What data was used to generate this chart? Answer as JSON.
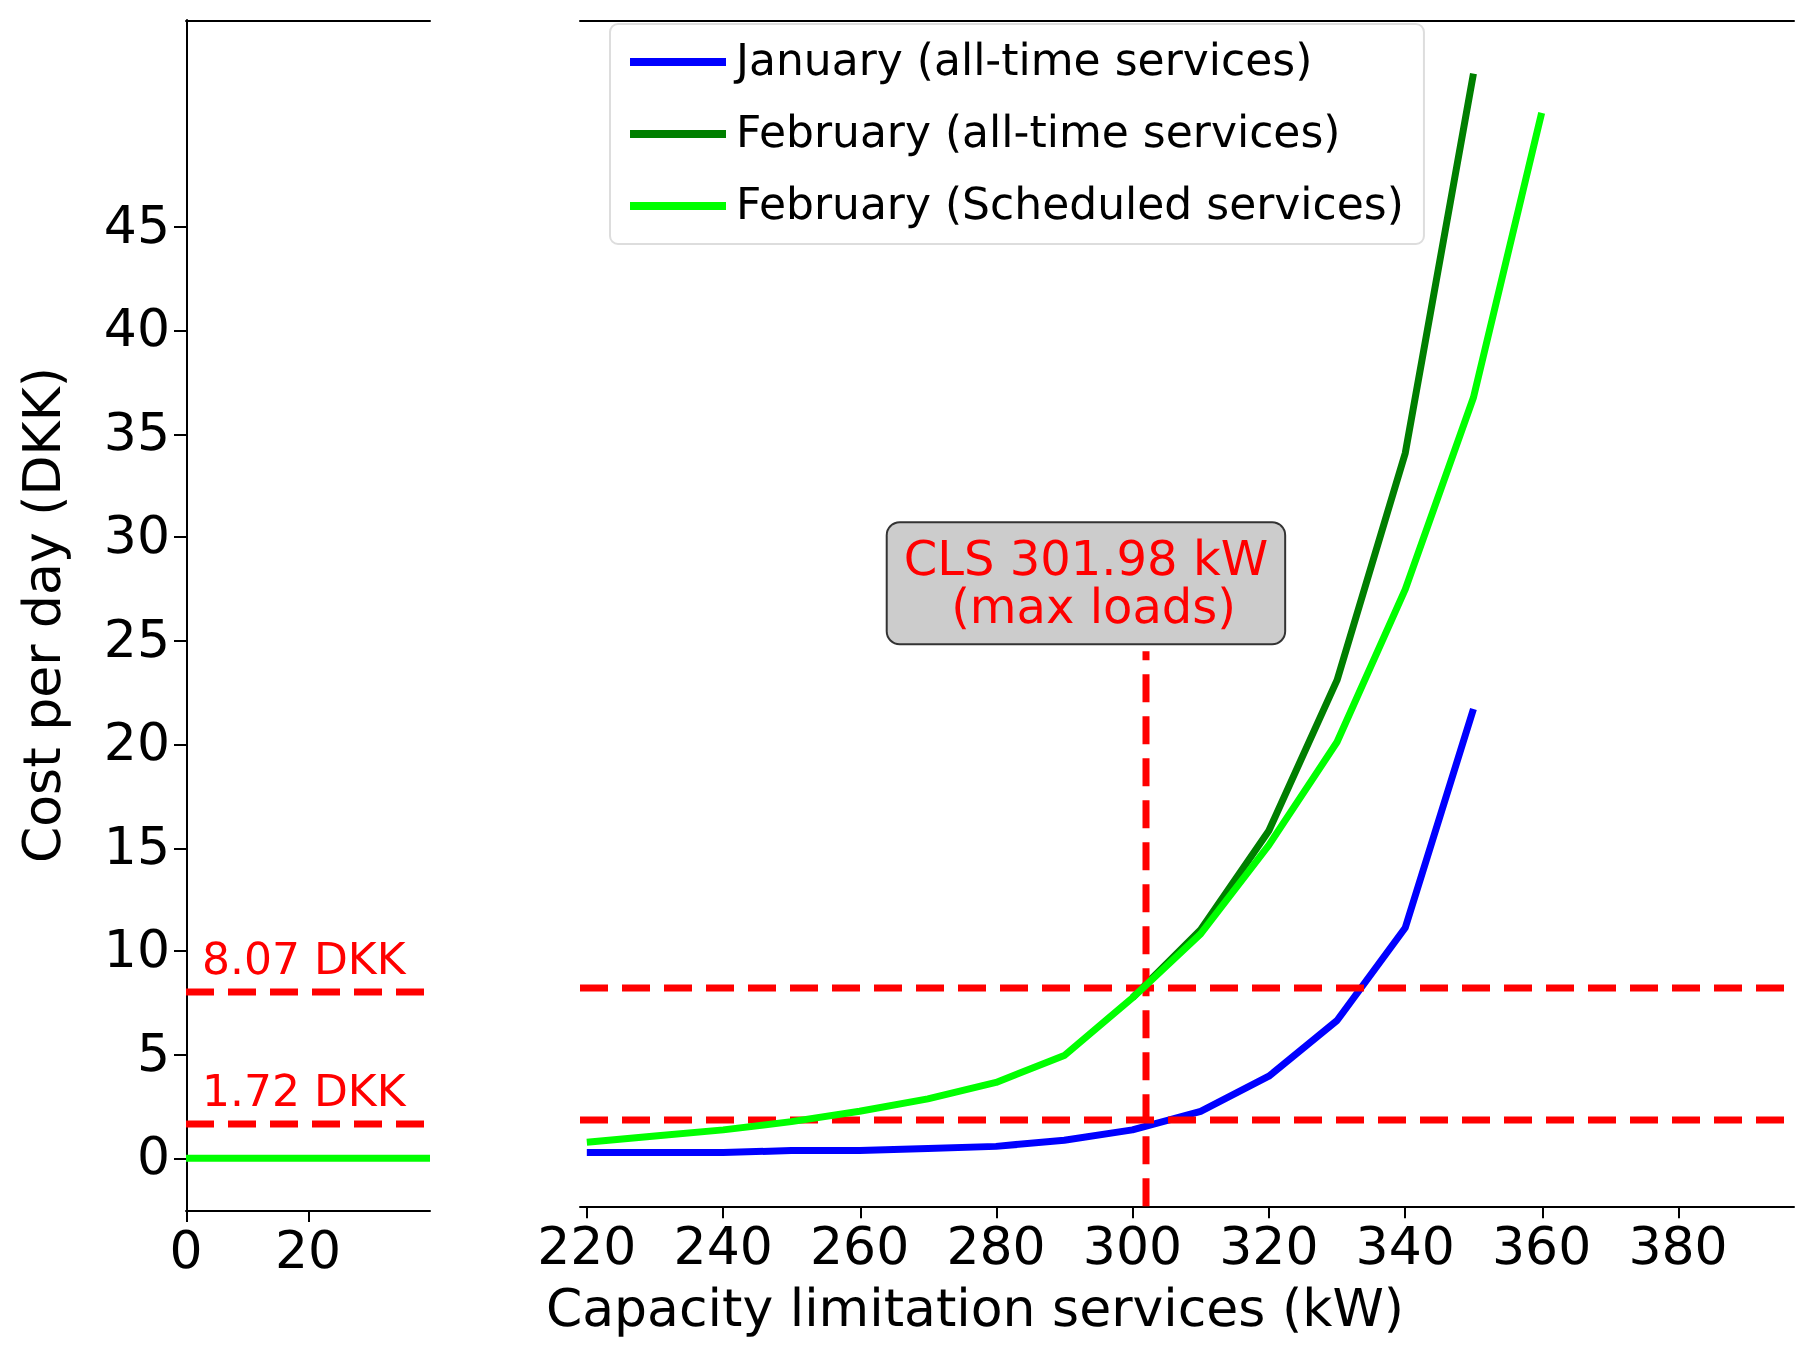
{
  "chart_data": [
    {
      "type": "line",
      "ylabel": "Cost per day (DKK)",
      "xlim": [
        0,
        40
      ],
      "xticks": [
        0,
        20
      ],
      "ylim": [
        -2.5,
        55
      ],
      "yticks": [
        0,
        5,
        10,
        15,
        20,
        25,
        30,
        35,
        40,
        45
      ],
      "grid": false,
      "legend": false,
      "marker": "none",
      "series": [
        {
          "color": "#00ff00",
          "x": [
            0,
            40
          ],
          "values": [
            0,
            0
          ]
        }
      ],
      "ref_lines": [
        {
          "axis": "y",
          "value": 8.07,
          "label": "8.07 DKK",
          "color": "#ff0000",
          "line_style": "dashed"
        },
        {
          "axis": "y",
          "value": 1.72,
          "label": "1.72 DKK",
          "color": "#ff0000",
          "line_style": "dashed"
        }
      ]
    },
    {
      "type": "line",
      "xlabel": "Capacity limitation services (kW)",
      "xlim": [
        219,
        397
      ],
      "xticks": [
        220,
        240,
        260,
        280,
        300,
        320,
        340,
        360,
        380
      ],
      "ylim": [
        -2.5,
        55
      ],
      "tick_labels": "x",
      "grid": false,
      "legend": "top",
      "marker": "none",
      "series": [
        {
          "name": "January (all-time services)",
          "color": "#0000ff",
          "x": [
            220,
            230,
            240,
            250,
            260,
            270,
            280,
            290,
            300,
            310,
            320,
            330,
            340,
            350
          ],
          "values": [
            0.1,
            0.1,
            0.1,
            0.2,
            0.2,
            0.3,
            0.4,
            0.7,
            1.2,
            2.1,
            3.8,
            6.5,
            11.0,
            21.6
          ]
        },
        {
          "name": "February (all-time services)",
          "color": "#007f00",
          "x": [
            300,
            310,
            320,
            330,
            340,
            350
          ],
          "values": [
            7.6,
            10.9,
            15.7,
            23.0,
            34.0,
            52.4
          ]
        },
        {
          "name": "February (Scheduled services)",
          "color": "#00ff00",
          "x": [
            220,
            230,
            240,
            250,
            260,
            270,
            280,
            290,
            300,
            310,
            320,
            330,
            340,
            350,
            360
          ],
          "values": [
            0.6,
            0.9,
            1.2,
            1.6,
            2.1,
            2.7,
            3.5,
            4.8,
            7.6,
            10.7,
            15.0,
            20.0,
            27.4,
            36.7,
            50.5
          ]
        }
      ],
      "ref_lines": [
        {
          "axis": "y",
          "value": 8.07,
          "color": "#ff0000",
          "line_style": "dashed"
        },
        {
          "axis": "y",
          "value": 1.72,
          "color": "#ff0000",
          "line_style": "dashed"
        },
        {
          "axis": "x",
          "value": 301.98,
          "color": "#ff0000",
          "line_style": "dashed"
        }
      ],
      "annotations": [
        {
          "text": "CLS 301.98 kW\n (max loads)",
          "x": 301.98,
          "y": 24.4
        }
      ]
    }
  ]
}
